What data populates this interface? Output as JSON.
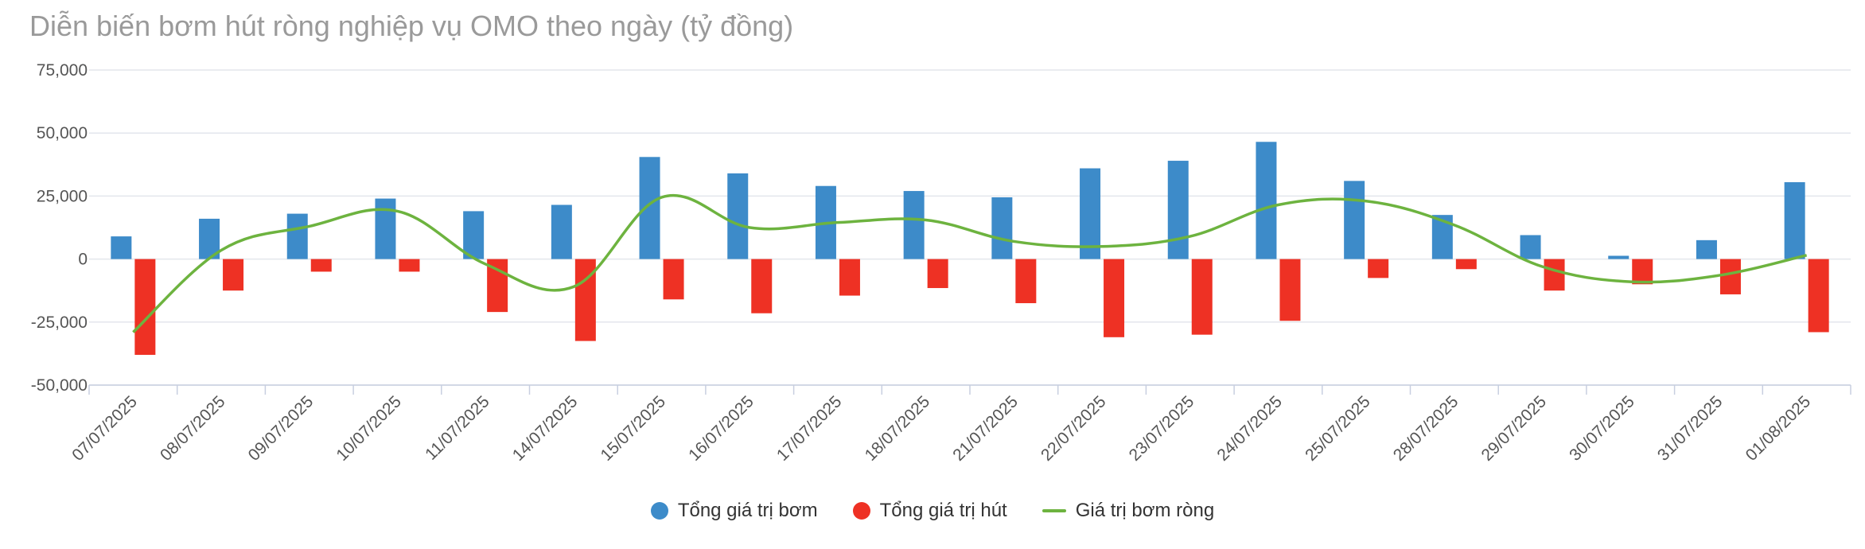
{
  "chart_data": {
    "type": "bar",
    "title": "Diễn biến bơm hút ròng nghiệp vụ OMO theo ngày (tỷ đồng)",
    "categories": [
      "07/07/2025",
      "08/07/2025",
      "09/07/2025",
      "10/07/2025",
      "11/07/2025",
      "14/07/2025",
      "15/07/2025",
      "16/07/2025",
      "17/07/2025",
      "18/07/2025",
      "21/07/2025",
      "22/07/2025",
      "23/07/2025",
      "24/07/2025",
      "25/07/2025",
      "28/07/2025",
      "29/07/2025",
      "30/07/2025",
      "31/07/2025",
      "01/08/2025"
    ],
    "yticks": [
      "75,000",
      "50,000",
      "25,000",
      "0",
      "-25,000",
      "-50,000"
    ],
    "ylim": [
      -50000,
      75000
    ],
    "grid": true,
    "legend_position": "bottom",
    "series": [
      {
        "name": "Tổng giá trị bơm",
        "type": "bar",
        "color": "#3d8bc9",
        "values": [
          9000,
          16000,
          18000,
          24000,
          19000,
          21500,
          40500,
          34000,
          29000,
          27000,
          24500,
          36000,
          39000,
          46500,
          31000,
          17500,
          9500,
          1300,
          7500,
          30500
        ]
      },
      {
        "name": "Tổng giá trị hút",
        "type": "bar",
        "color": "#ee3124",
        "values": [
          -38000,
          -12500,
          -5000,
          -5000,
          -21000,
          -32500,
          -16000,
          -21500,
          -14500,
          -11500,
          -17500,
          -31000,
          -30000,
          -24500,
          -7500,
          -4000,
          -12500,
          -10000,
          -14000,
          -29000
        ]
      },
      {
        "name": "Giá trị bơm ròng",
        "type": "line",
        "color": "#6db33f",
        "values": [
          -29000,
          3500,
          13000,
          19000,
          -2000,
          -11000,
          24500,
          12500,
          14500,
          15500,
          7000,
          5000,
          9000,
          21500,
          23000,
          13500,
          -3000,
          -9000,
          -6500,
          1500
        ]
      }
    ]
  }
}
